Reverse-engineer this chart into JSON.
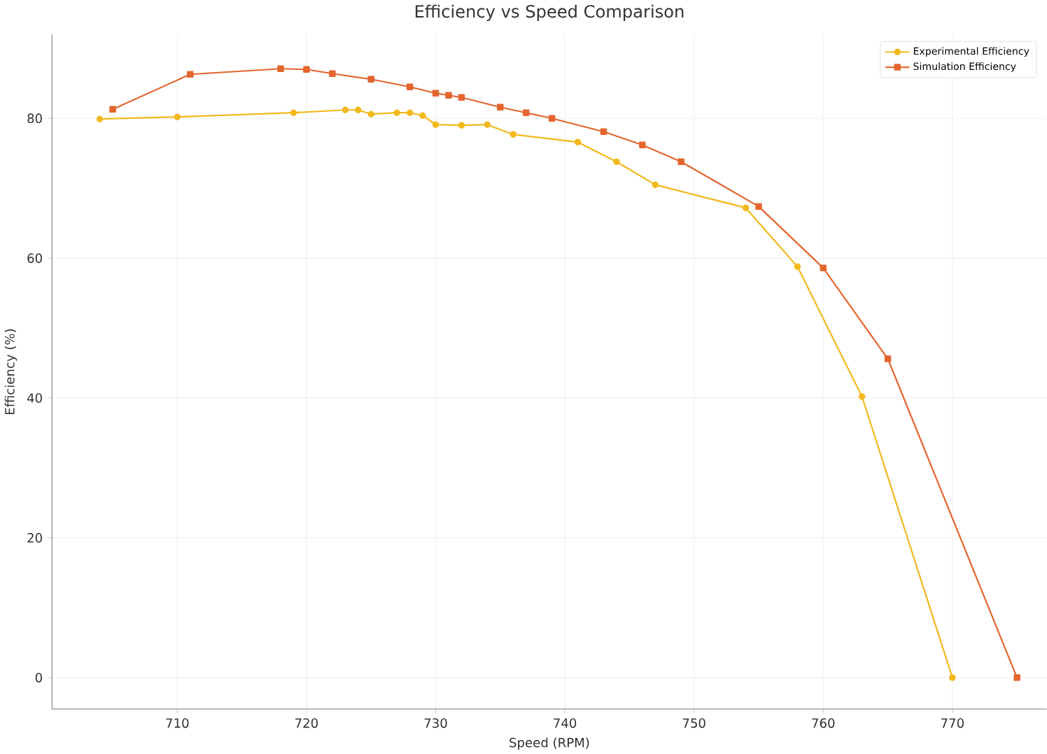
{
  "chart_data": {
    "type": "line",
    "title": "Efficiency vs Speed Comparison",
    "xlabel": "Speed (RPM)",
    "ylabel": "Efficiency (%)",
    "xlim": [
      700.3,
      777.3
    ],
    "ylim": [
      -4.5,
      92
    ],
    "xticks": [
      710,
      720,
      730,
      740,
      750,
      760,
      770
    ],
    "yticks": [
      0,
      20,
      40,
      60,
      80
    ],
    "grid": true,
    "legend": "top right",
    "line_style": "solid",
    "series": [
      {
        "name": "Experimental Efficiency",
        "color": "#f2b81d",
        "marker": "circle",
        "x": [
          704,
          710,
          719,
          723,
          724,
          725,
          727,
          728,
          729,
          730,
          732,
          734,
          736,
          741,
          744,
          747,
          754,
          758,
          763,
          770
        ],
        "values": [
          79.9,
          80.2,
          80.8,
          81.2,
          81.2,
          80.6,
          80.8,
          80.8,
          80.4,
          79.1,
          79,
          79.1,
          77.7,
          76.6,
          73.8,
          70.5,
          67.2,
          58.8,
          40.2,
          0
        ]
      },
      {
        "name": "Simulation Efficiency",
        "color": "#e3652e",
        "marker": "square",
        "x": [
          705,
          711,
          718,
          720,
          722,
          725,
          728,
          730,
          731,
          732,
          735,
          737,
          739,
          743,
          746,
          749,
          755,
          760,
          765,
          775
        ],
        "values": [
          81.3,
          86.3,
          87.1,
          87,
          86.4,
          85.6,
          84.5,
          83.6,
          83.3,
          83,
          81.6,
          80.8,
          80,
          78.1,
          76.2,
          73.8,
          67.4,
          58.6,
          45.6,
          0
        ]
      }
    ]
  }
}
